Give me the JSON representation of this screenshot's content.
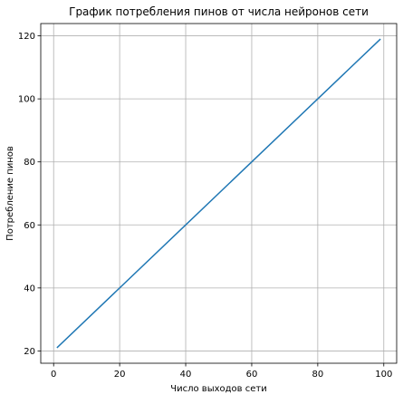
{
  "chart_data": {
    "type": "line",
    "title": "График потребления пинов от числа нейронов сети",
    "xlabel": "Число выходов сети",
    "ylabel": "Потребление пинов",
    "xlim": [
      -3.9,
      103.9
    ],
    "ylim": [
      16.1,
      123.9
    ],
    "xticks": [
      0,
      20,
      40,
      60,
      80,
      100
    ],
    "yticks": [
      20,
      40,
      60,
      80,
      100,
      120
    ],
    "grid": true,
    "series": [
      {
        "color": "#1f77b4",
        "x": [
          1,
          99
        ],
        "y": [
          21,
          119
        ]
      }
    ]
  }
}
